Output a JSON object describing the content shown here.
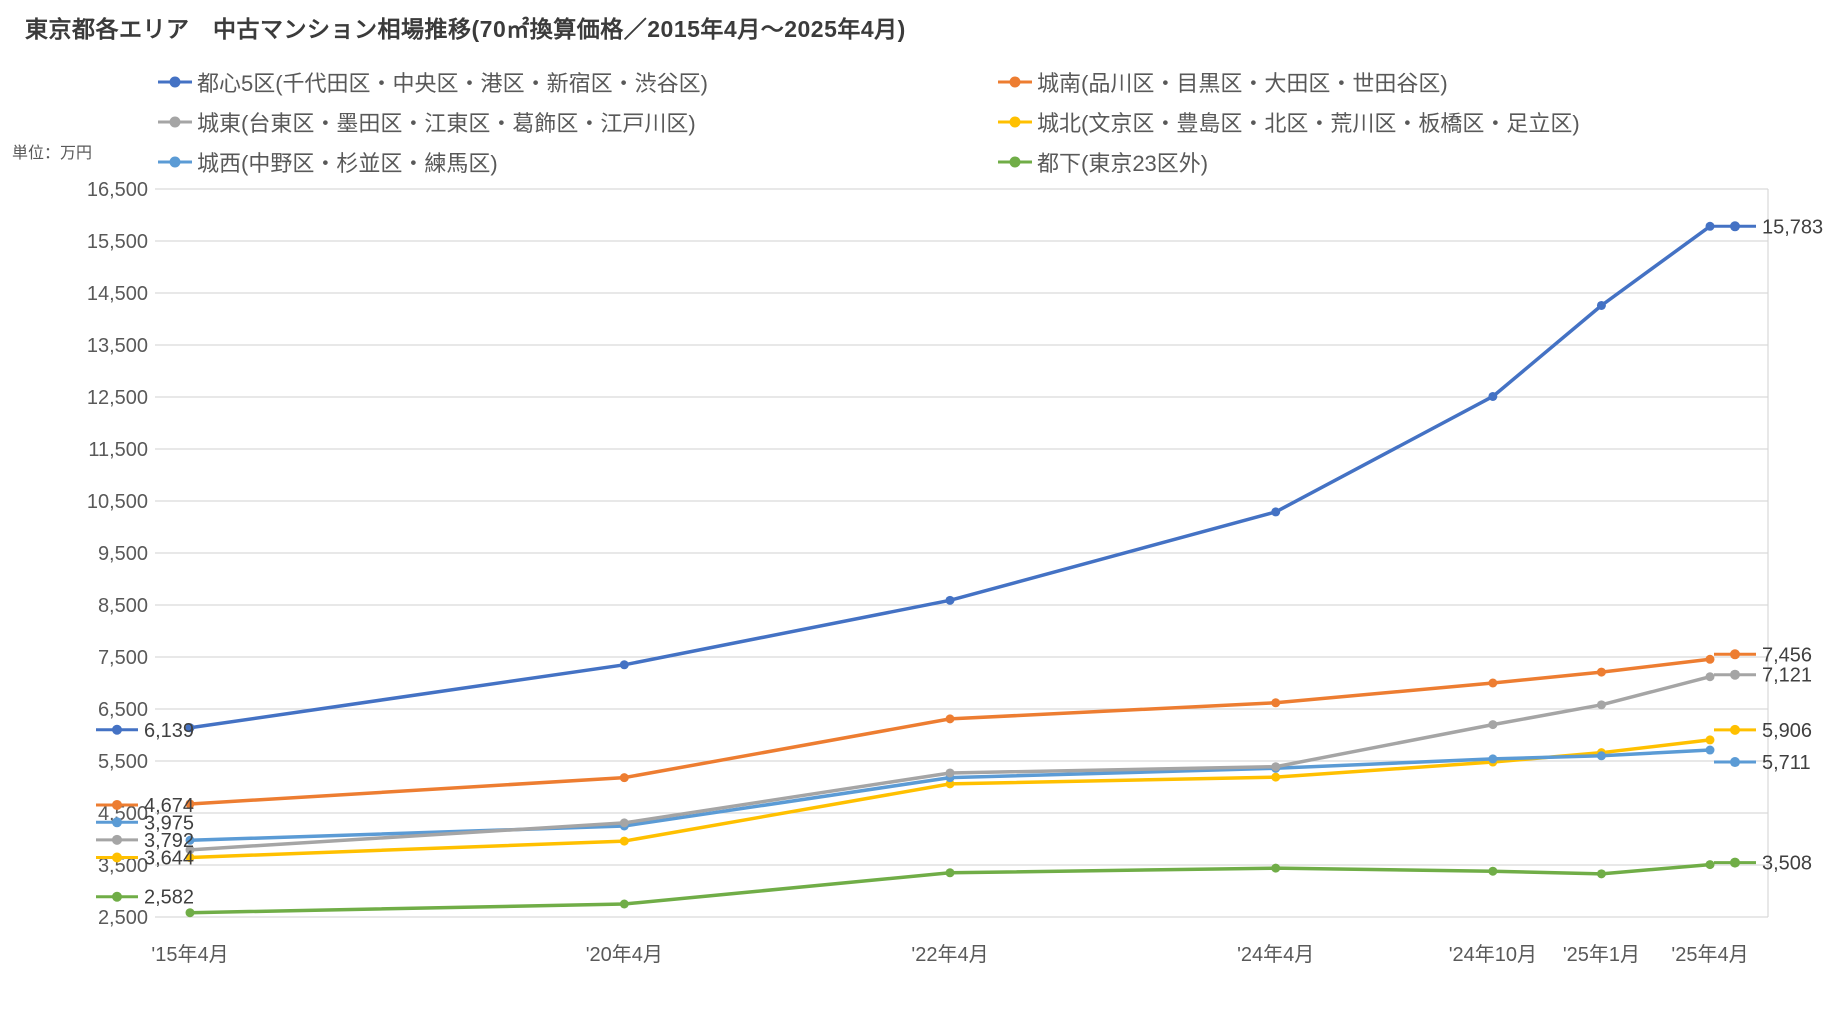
{
  "title": "東京都各エリア　中古マンション相場推移(70㎡換算価格／2015年4月～2025年4月)",
  "unit_label": "単位：万円",
  "chart_data": {
    "type": "line",
    "title": "東京都各エリア　中古マンション相場推移(70㎡換算価格／2015年4月～2025年4月)",
    "ylabel": "単位：万円",
    "xlabel": "",
    "grid": true,
    "legend_position": "top",
    "categories": [
      "'15年4月",
      "'20年4月",
      "'22年4月",
      "'24年4月",
      "'24年10月",
      "'25年1月",
      "'25年4月"
    ],
    "x_spacing_units": [
      0,
      4,
      7,
      10,
      12,
      13,
      14
    ],
    "y_axis": {
      "min": 2500,
      "max": 16500,
      "step": 1000,
      "tick_labels": [
        "2,500",
        "3,500",
        "4,500",
        "5,500",
        "6,500",
        "7,500",
        "8,500",
        "9,500",
        "10,500",
        "11,500",
        "12,500",
        "13,500",
        "14,500",
        "15,500",
        "16,500"
      ]
    },
    "series": [
      {
        "name": "都心5区(千代田区・中央区・港区・新宿区・渋谷区)",
        "color": "#4472C4",
        "values": [
          6139,
          7350,
          8590,
          10290,
          12510,
          14260,
          15783
        ],
        "first_label": "6,139",
        "last_label": "15,783"
      },
      {
        "name": "城南(品川区・目黒区・大田区・世田谷区)",
        "color": "#ED7D31",
        "values": [
          4674,
          5180,
          6310,
          6620,
          7000,
          7210,
          7456
        ],
        "first_label": "4,674",
        "last_label": "7,456"
      },
      {
        "name": "城東(台東区・墨田区・江東区・葛飾区・江戸川区)",
        "color": "#A5A5A5",
        "values": [
          3792,
          4310,
          5270,
          5390,
          6200,
          6580,
          7121
        ],
        "first_label": "3,792",
        "last_label": "7,121"
      },
      {
        "name": "城北(文京区・豊島区・北区・荒川区・板橋区・足立区)",
        "color": "#FFC000",
        "values": [
          3644,
          3960,
          5060,
          5190,
          5480,
          5660,
          5906
        ],
        "first_label": "3,644",
        "last_label": "5,906"
      },
      {
        "name": "城西(中野区・杉並区・練馬区)",
        "color": "#5B9BD5",
        "values": [
          3975,
          4250,
          5180,
          5360,
          5540,
          5600,
          5711
        ],
        "first_label": "3,975",
        "last_label": "5,711"
      },
      {
        "name": "都下(東京23区外)",
        "color": "#70AD47",
        "values": [
          2582,
          2750,
          3350,
          3440,
          3380,
          3330,
          3508
        ],
        "first_label": "2,582",
        "last_label": "3,508"
      }
    ],
    "colors": {
      "grid": "#D9D9D9",
      "axis_text": "#595959",
      "data_label_text": "#404040",
      "title_text": "#3b3b3b"
    }
  }
}
